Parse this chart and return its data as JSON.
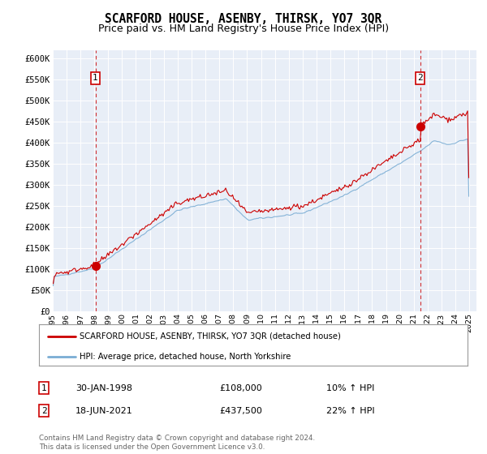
{
  "title": "SCARFORD HOUSE, ASENBY, THIRSK, YO7 3QR",
  "subtitle": "Price paid vs. HM Land Registry's House Price Index (HPI)",
  "ylabel_ticks": [
    "£0",
    "£50K",
    "£100K",
    "£150K",
    "£200K",
    "£250K",
    "£300K",
    "£350K",
    "£400K",
    "£450K",
    "£500K",
    "£550K",
    "£600K"
  ],
  "ylim": [
    0,
    620000
  ],
  "ytick_vals": [
    0,
    50000,
    100000,
    150000,
    200000,
    250000,
    300000,
    350000,
    400000,
    450000,
    500000,
    550000,
    600000
  ],
  "background_color": "#e8eef7",
  "plot_bg_color": "#e8eef7",
  "marker1_year": 1998.08,
  "marker1_price": 108000,
  "marker2_year": 2021.46,
  "marker2_price": 437500,
  "legend_line1": "SCARFORD HOUSE, ASENBY, THIRSK, YO7 3QR (detached house)",
  "legend_line2": "HPI: Average price, detached house, North Yorkshire",
  "anno1_date": "30-JAN-1998",
  "anno1_price": "£108,000",
  "anno1_hpi": "10% ↑ HPI",
  "anno2_date": "18-JUN-2021",
  "anno2_price": "£437,500",
  "anno2_hpi": "22% ↑ HPI",
  "footer": "Contains HM Land Registry data © Crown copyright and database right 2024.\nThis data is licensed under the Open Government Licence v3.0.",
  "line_color_red": "#cc0000",
  "line_color_blue": "#7aadd4",
  "vline_color": "#cc0000",
  "marker_box_color": "#cc0000",
  "title_fontsize": 10.5,
  "subtitle_fontsize": 9
}
